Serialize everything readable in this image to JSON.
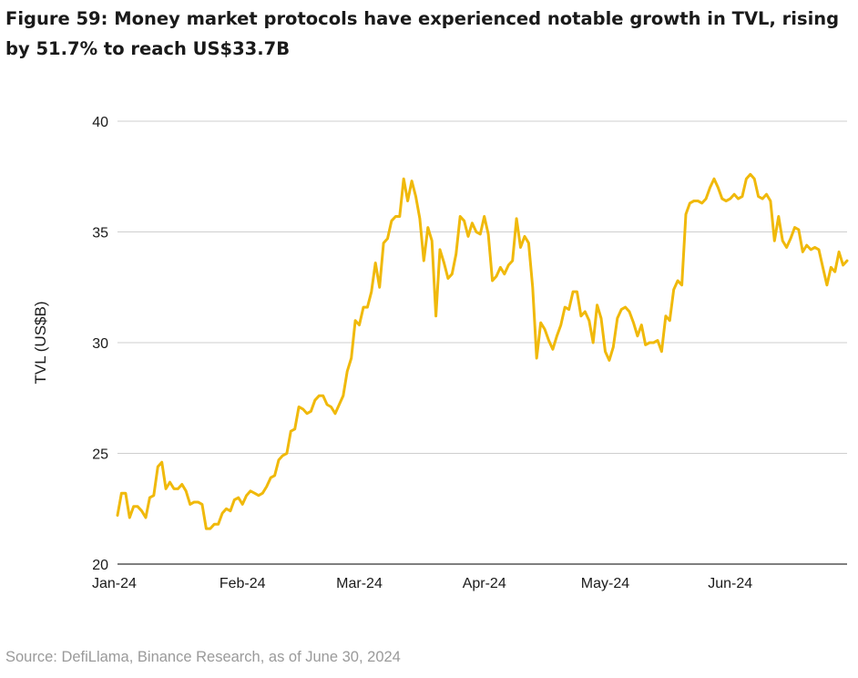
{
  "title": "Figure 59: Money market protocols have experienced notable growth in TVL, rising by 51.7% to reach US$33.7B",
  "source": "Source: DefiLlama, Binance Research, as of June 30, 2024",
  "chart_data": {
    "type": "line",
    "title": "Figure 59: Money market protocols have experienced notable growth in TVL, rising by 51.7% to reach US$33.7B",
    "xlabel": "",
    "ylabel": "TVL (US$B)",
    "ylim": [
      20,
      40
    ],
    "yticks": [
      20,
      25,
      30,
      35,
      40
    ],
    "xlim": [
      0,
      181
    ],
    "xtick_positions": [
      0,
      31,
      60,
      91,
      121,
      152
    ],
    "xtick_labels": [
      "Jan-24",
      "Feb-24",
      "Mar-24",
      "Apr-24",
      "May-24",
      "Jun-24"
    ],
    "grid": true,
    "line_color": "#F0B90B",
    "series": [
      {
        "name": "TVL",
        "x": [
          0,
          1,
          2,
          3,
          4,
          5,
          6,
          7,
          8,
          9,
          10,
          11,
          12,
          13,
          14,
          15,
          16,
          17,
          18,
          19,
          20,
          21,
          22,
          23,
          24,
          25,
          26,
          27,
          28,
          29,
          30,
          31,
          32,
          33,
          34,
          35,
          36,
          37,
          38,
          39,
          40,
          41,
          42,
          43,
          44,
          45,
          46,
          47,
          48,
          49,
          50,
          51,
          52,
          53,
          54,
          55,
          56,
          57,
          58,
          59,
          60,
          61,
          62,
          63,
          64,
          65,
          66,
          67,
          68,
          69,
          70,
          71,
          72,
          73,
          74,
          75,
          76,
          77,
          78,
          79,
          80,
          81,
          82,
          83,
          84,
          85,
          86,
          87,
          88,
          89,
          90,
          91,
          92,
          93,
          94,
          95,
          96,
          97,
          98,
          99,
          100,
          101,
          102,
          103,
          104,
          105,
          106,
          107,
          108,
          109,
          110,
          111,
          112,
          113,
          114,
          115,
          116,
          117,
          118,
          119,
          120,
          121,
          122,
          123,
          124,
          125,
          126,
          127,
          128,
          129,
          130,
          131,
          132,
          133,
          134,
          135,
          136,
          137,
          138,
          139,
          140,
          141,
          142,
          143,
          144,
          145,
          146,
          147,
          148,
          149,
          150,
          151,
          152,
          153,
          154,
          155,
          156,
          157,
          158,
          159,
          160,
          161,
          162,
          163,
          164,
          165,
          166,
          167,
          168,
          169,
          170,
          171,
          172,
          173,
          174,
          175,
          176,
          177,
          178,
          179,
          180,
          181
        ],
        "values": [
          22.2,
          23.2,
          23.2,
          22.1,
          22.6,
          22.6,
          22.4,
          22.1,
          23.0,
          23.1,
          24.4,
          24.6,
          23.4,
          23.7,
          23.4,
          23.4,
          23.6,
          23.3,
          22.7,
          22.8,
          22.8,
          22.7,
          21.6,
          21.6,
          21.8,
          21.8,
          22.3,
          22.5,
          22.4,
          22.9,
          23.0,
          22.7,
          23.1,
          23.3,
          23.2,
          23.1,
          23.2,
          23.5,
          23.9,
          24.0,
          24.7,
          24.9,
          25.0,
          26.0,
          26.1,
          27.1,
          27.0,
          26.8,
          26.9,
          27.4,
          27.6,
          27.6,
          27.2,
          27.1,
          26.8,
          27.2,
          27.6,
          28.7,
          29.3,
          31.0,
          30.8,
          31.6,
          31.6,
          32.3,
          33.6,
          32.5,
          34.5,
          34.7,
          35.5,
          35.7,
          35.7,
          37.4,
          36.4,
          37.3,
          36.6,
          35.6,
          33.7,
          35.2,
          34.6,
          31.2,
          34.2,
          33.6,
          32.9,
          33.1,
          34.0,
          35.7,
          35.5,
          34.8,
          35.4,
          35.0,
          34.9,
          35.7,
          34.9,
          32.8,
          33.0,
          33.4,
          33.1,
          33.5,
          33.7,
          35.6,
          34.3,
          34.8,
          34.5,
          32.5,
          29.3,
          30.9,
          30.6,
          30.1,
          29.7,
          30.3,
          30.8,
          31.6,
          31.5,
          32.3,
          32.3,
          31.2,
          31.4,
          31.0,
          30.0,
          31.7,
          31.1,
          29.6,
          29.2,
          29.8,
          31.1,
          31.5,
          31.6,
          31.4,
          30.9,
          30.3,
          30.8,
          29.9,
          30.0,
          30.0,
          30.1,
          29.6,
          31.2,
          31.0,
          32.4,
          32.8,
          32.6,
          35.8,
          36.3,
          36.4,
          36.4,
          36.3,
          36.5,
          37.0,
          37.4,
          37.0,
          36.5,
          36.4,
          36.5,
          36.7,
          36.5,
          36.6,
          37.4,
          37.6,
          37.4,
          36.6,
          36.5,
          36.7,
          36.4,
          34.6,
          35.7,
          34.6,
          34.3,
          34.7,
          35.2,
          35.1,
          34.1,
          34.4,
          34.2,
          34.3,
          34.2,
          33.4,
          32.6,
          33.4,
          33.2,
          34.1,
          33.5,
          33.7
        ]
      }
    ]
  }
}
